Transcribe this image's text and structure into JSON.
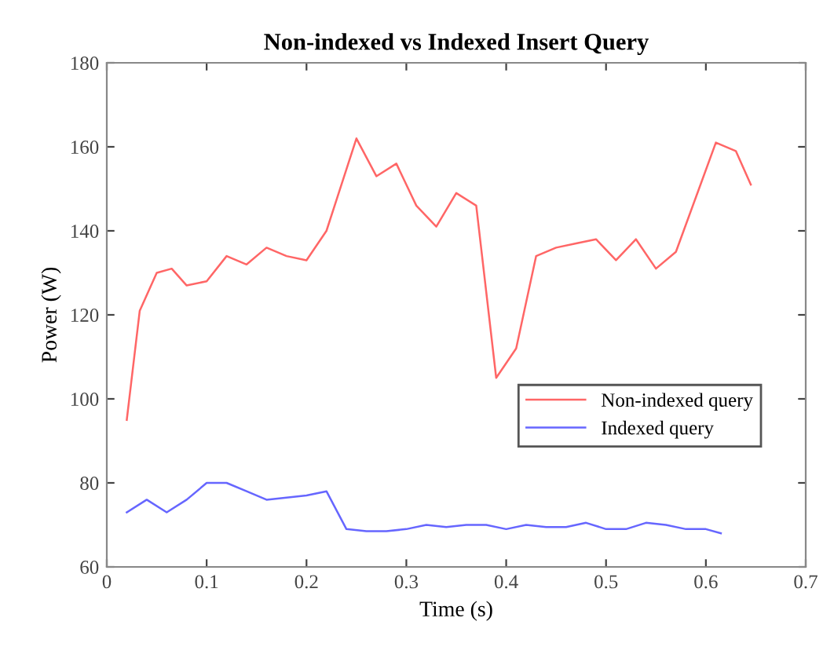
{
  "chart_data": {
    "type": "line",
    "title": "Non-indexed vs Indexed Insert Query",
    "xlabel": "Time (s)",
    "ylabel": "Power (W)",
    "xlim": [
      0,
      0.7
    ],
    "xticks": [
      0,
      0.1,
      0.2,
      0.3,
      0.4,
      0.5,
      0.6,
      0.7
    ],
    "ylim": [
      60,
      180
    ],
    "yticks": [
      60,
      80,
      100,
      120,
      140,
      160,
      180
    ],
    "grid": false,
    "legend": "right",
    "marker": "none",
    "line_style": "solid",
    "series": [
      {
        "name": "Non-indexed query",
        "color": "#ff6666",
        "x": [
          0.02,
          0.033,
          0.05,
          0.065,
          0.08,
          0.1,
          0.12,
          0.14,
          0.16,
          0.18,
          0.2,
          0.22,
          0.25,
          0.27,
          0.29,
          0.31,
          0.33,
          0.35,
          0.37,
          0.39,
          0.41,
          0.43,
          0.45,
          0.47,
          0.49,
          0.51,
          0.53,
          0.55,
          0.57,
          0.59,
          0.61,
          0.63,
          0.645
        ],
        "values": [
          95,
          121,
          130,
          131,
          127,
          128,
          134,
          132,
          136,
          134,
          133,
          140,
          162,
          153,
          156,
          146,
          141,
          149,
          146,
          105,
          112,
          134,
          136,
          137,
          138,
          133,
          138,
          131,
          135,
          148,
          161,
          159,
          151
        ]
      },
      {
        "name": "Indexed query",
        "color": "#6666ff",
        "x": [
          0.02,
          0.04,
          0.06,
          0.08,
          0.1,
          0.12,
          0.14,
          0.16,
          0.18,
          0.2,
          0.22,
          0.24,
          0.26,
          0.28,
          0.3,
          0.32,
          0.34,
          0.36,
          0.38,
          0.4,
          0.42,
          0.44,
          0.46,
          0.48,
          0.5,
          0.52,
          0.54,
          0.56,
          0.58,
          0.6,
          0.615
        ],
        "values": [
          73,
          76,
          73,
          76,
          80,
          80,
          78,
          76,
          76.5,
          77,
          78,
          69,
          68.5,
          68.5,
          69,
          70,
          69.5,
          70,
          70,
          69,
          70,
          69.5,
          69.5,
          70.5,
          69,
          69,
          70.5,
          70,
          69,
          69,
          68
        ]
      }
    ]
  }
}
